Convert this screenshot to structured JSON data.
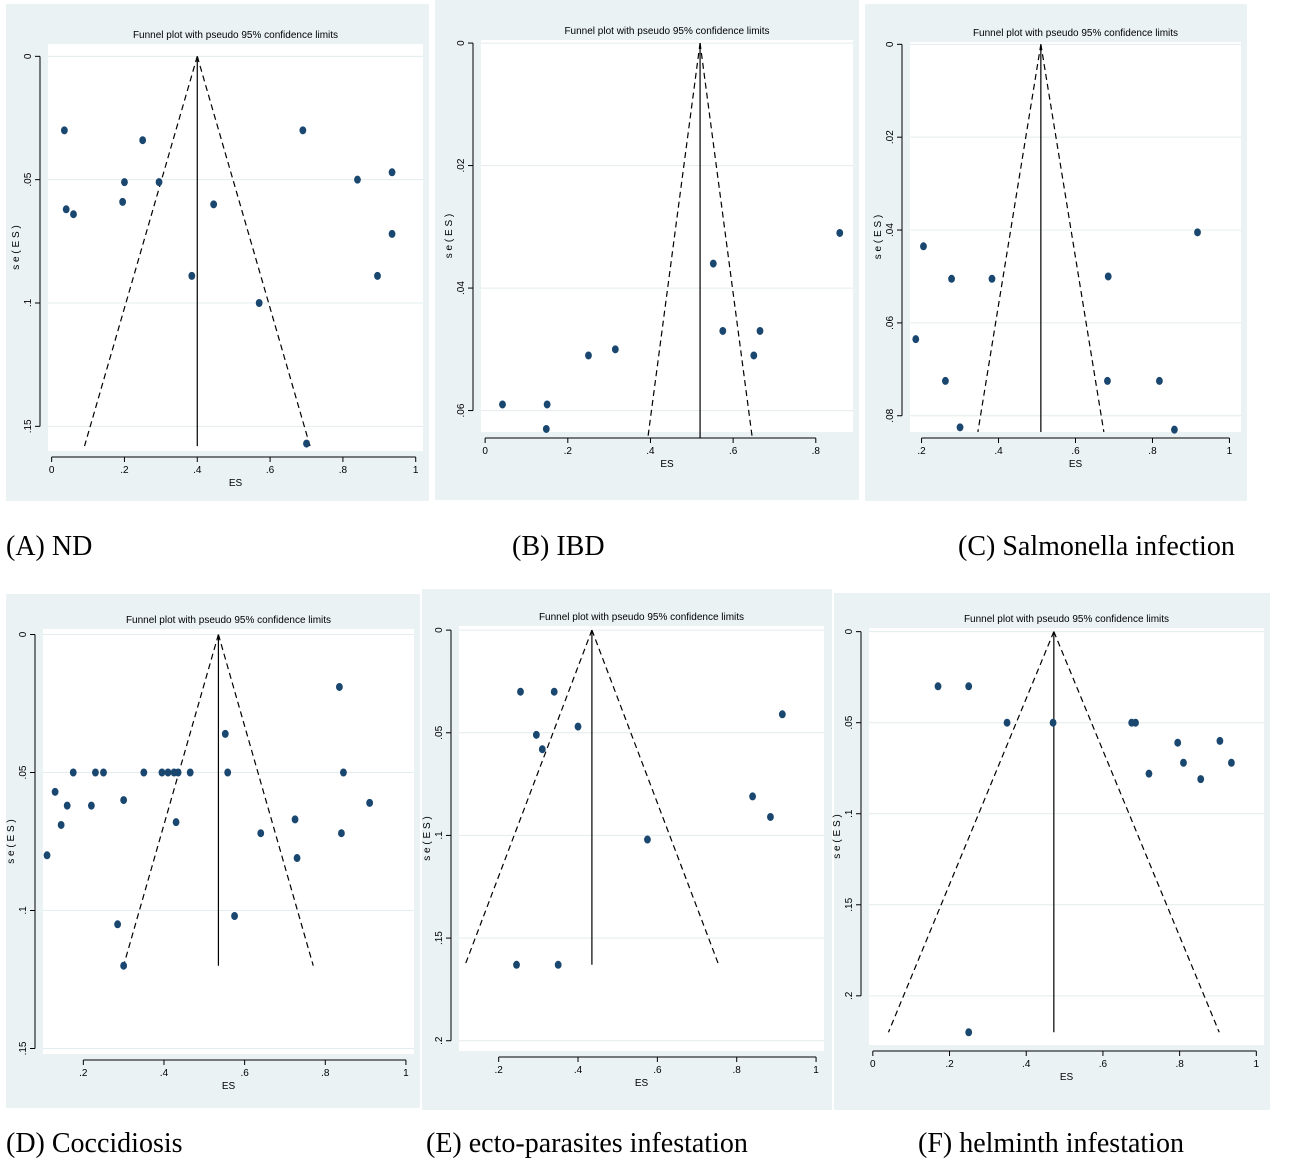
{
  "colors": {
    "panel_bg": "#eaf2f3",
    "plot_bg": "#ffffff",
    "grid": "#e3ecee",
    "marker": "#1a476f",
    "line": "#000000"
  },
  "captions": [
    "(A) ND",
    "(B) IBD",
    "(C) Salmonella infection",
    "(D) Coccidiosis",
    "(E) ecto-parasites infestation",
    "(F) helminth infestation"
  ],
  "chart_data": [
    {
      "type": "scatter",
      "title": "Funnel plot with pseudo 95% confidence limits",
      "xlabel": "ES",
      "ylabel": "s e ( E S )",
      "xlim": [
        -0.01,
        1.02
      ],
      "ylim": [
        0.16,
        -0.005
      ],
      "y_reversed": true,
      "grid": true,
      "xticks": [
        0,
        0.2,
        0.4,
        0.6,
        0.8,
        1
      ],
      "xtick_labels": [
        "0",
        ".2",
        ".4",
        ".6",
        ".8",
        "1"
      ],
      "yticks": [
        0,
        0.05,
        0.1,
        0.15
      ],
      "ytick_labels": [
        "0",
        ".05",
        ".1",
        ".15"
      ],
      "pooled_es": 0.4,
      "funnel_max_se": 0.158,
      "points": [
        {
          "x": 0.035,
          "y": 0.03
        },
        {
          "x": 0.04,
          "y": 0.062
        },
        {
          "x": 0.06,
          "y": 0.064
        },
        {
          "x": 0.195,
          "y": 0.059
        },
        {
          "x": 0.2,
          "y": 0.051
        },
        {
          "x": 0.25,
          "y": 0.034
        },
        {
          "x": 0.295,
          "y": 0.051
        },
        {
          "x": 0.385,
          "y": 0.089
        },
        {
          "x": 0.445,
          "y": 0.06
        },
        {
          "x": 0.57,
          "y": 0.1
        },
        {
          "x": 0.69,
          "y": 0.03
        },
        {
          "x": 0.7,
          "y": 0.157
        },
        {
          "x": 0.84,
          "y": 0.05
        },
        {
          "x": 0.895,
          "y": 0.089
        },
        {
          "x": 0.935,
          "y": 0.047
        },
        {
          "x": 0.935,
          "y": 0.072
        }
      ]
    },
    {
      "type": "scatter",
      "title": "Funnel plot with pseudo 95% confidence limits",
      "xlabel": "ES",
      "ylabel": "s e ( E S )",
      "xlim": [
        -0.01,
        0.89
      ],
      "ylim": [
        0.0635,
        -0.0005
      ],
      "y_reversed": true,
      "grid": true,
      "xticks": [
        0,
        0.2,
        0.4,
        0.6,
        0.8
      ],
      "xtick_labels": [
        "0",
        ".2",
        ".4",
        ".6",
        ".8"
      ],
      "yticks": [
        0,
        0.02,
        0.04,
        0.06
      ],
      "ytick_labels": [
        "0",
        ".02",
        ".04",
        ".06"
      ],
      "pooled_es": 0.52,
      "funnel_max_se": 0.0645,
      "points": [
        {
          "x": 0.042,
          "y": 0.059
        },
        {
          "x": 0.148,
          "y": 0.063
        },
        {
          "x": 0.15,
          "y": 0.059
        },
        {
          "x": 0.25,
          "y": 0.051
        },
        {
          "x": 0.315,
          "y": 0.05
        },
        {
          "x": 0.552,
          "y": 0.036
        },
        {
          "x": 0.575,
          "y": 0.047
        },
        {
          "x": 0.65,
          "y": 0.051
        },
        {
          "x": 0.665,
          "y": 0.047
        },
        {
          "x": 0.858,
          "y": 0.031
        }
      ]
    },
    {
      "type": "scatter",
      "title": "Funnel plot with pseudo 95% confidence limits",
      "xlabel": "ES",
      "ylabel": "s e ( E S )",
      "xlim": [
        0.17,
        1.03
      ],
      "ylim": [
        0.0835,
        -0.0005
      ],
      "y_reversed": true,
      "grid": true,
      "xticks": [
        0.2,
        0.4,
        0.6,
        0.8,
        1
      ],
      "xtick_labels": [
        ".2",
        ".4",
        ".6",
        ".8",
        "1"
      ],
      "yticks": [
        0,
        0.02,
        0.04,
        0.06,
        0.08
      ],
      "ytick_labels": [
        "0",
        ".02",
        ".04",
        ".06",
        ".08"
      ],
      "pooled_es": 0.51,
      "funnel_max_se": 0.0835,
      "points": [
        {
          "x": 0.185,
          "y": 0.0635
        },
        {
          "x": 0.205,
          "y": 0.0435
        },
        {
          "x": 0.262,
          "y": 0.0725
        },
        {
          "x": 0.278,
          "y": 0.0505
        },
        {
          "x": 0.3,
          "y": 0.0825
        },
        {
          "x": 0.383,
          "y": 0.0505
        },
        {
          "x": 0.683,
          "y": 0.0725
        },
        {
          "x": 0.685,
          "y": 0.05
        },
        {
          "x": 0.818,
          "y": 0.0725
        },
        {
          "x": 0.857,
          "y": 0.083
        },
        {
          "x": 0.917,
          "y": 0.0405
        }
      ]
    },
    {
      "type": "scatter",
      "title": "Funnel plot with pseudo 95% confidence limits",
      "xlabel": "ES",
      "ylabel": "s e ( E S )",
      "xlim": [
        0.1,
        1.02
      ],
      "ylim": [
        0.152,
        -0.002
      ],
      "y_reversed": true,
      "grid": true,
      "xticks": [
        0.2,
        0.4,
        0.6,
        0.8,
        1
      ],
      "xtick_labels": [
        ".2",
        ".4",
        ".6",
        ".8",
        "1"
      ],
      "yticks": [
        0,
        0.05,
        0.1,
        0.15
      ],
      "ytick_labels": [
        "0",
        ".05",
        ".1",
        ".15"
      ],
      "pooled_es": 0.535,
      "funnel_max_se": 0.12,
      "points": [
        {
          "x": 0.11,
          "y": 0.08
        },
        {
          "x": 0.13,
          "y": 0.057
        },
        {
          "x": 0.145,
          "y": 0.069
        },
        {
          "x": 0.16,
          "y": 0.062
        },
        {
          "x": 0.175,
          "y": 0.05
        },
        {
          "x": 0.22,
          "y": 0.062
        },
        {
          "x": 0.23,
          "y": 0.05
        },
        {
          "x": 0.25,
          "y": 0.05
        },
        {
          "x": 0.285,
          "y": 0.105
        },
        {
          "x": 0.3,
          "y": 0.06
        },
        {
          "x": 0.3,
          "y": 0.12
        },
        {
          "x": 0.35,
          "y": 0.05
        },
        {
          "x": 0.395,
          "y": 0.05
        },
        {
          "x": 0.41,
          "y": 0.05
        },
        {
          "x": 0.425,
          "y": 0.05
        },
        {
          "x": 0.43,
          "y": 0.068
        },
        {
          "x": 0.435,
          "y": 0.05
        },
        {
          "x": 0.465,
          "y": 0.05
        },
        {
          "x": 0.552,
          "y": 0.036
        },
        {
          "x": 0.558,
          "y": 0.05
        },
        {
          "x": 0.575,
          "y": 0.102
        },
        {
          "x": 0.64,
          "y": 0.072
        },
        {
          "x": 0.725,
          "y": 0.067
        },
        {
          "x": 0.73,
          "y": 0.081
        },
        {
          "x": 0.835,
          "y": 0.019
        },
        {
          "x": 0.84,
          "y": 0.072
        },
        {
          "x": 0.845,
          "y": 0.05
        },
        {
          "x": 0.91,
          "y": 0.061
        }
      ]
    },
    {
      "type": "scatter",
      "title": "Funnel plot with pseudo 95% confidence limits",
      "xlabel": "ES",
      "ylabel": "s e ( E S )",
      "xlim": [
        0.1,
        1.02
      ],
      "ylim": [
        0.205,
        -0.002
      ],
      "y_reversed": true,
      "grid": true,
      "xticks": [
        0.2,
        0.4,
        0.6,
        0.8,
        1
      ],
      "xtick_labels": [
        ".2",
        ".4",
        ".6",
        ".8",
        "1"
      ],
      "yticks": [
        0,
        0.05,
        0.1,
        0.15,
        0.2
      ],
      "ytick_labels": [
        "0",
        ".05",
        ".1",
        ".15",
        ".2"
      ],
      "pooled_es": 0.435,
      "funnel_max_se": 0.163,
      "points": [
        {
          "x": 0.245,
          "y": 0.163
        },
        {
          "x": 0.255,
          "y": 0.03
        },
        {
          "x": 0.295,
          "y": 0.051
        },
        {
          "x": 0.31,
          "y": 0.058
        },
        {
          "x": 0.34,
          "y": 0.03
        },
        {
          "x": 0.35,
          "y": 0.163
        },
        {
          "x": 0.4,
          "y": 0.047
        },
        {
          "x": 0.575,
          "y": 0.102
        },
        {
          "x": 0.84,
          "y": 0.081
        },
        {
          "x": 0.885,
          "y": 0.091
        },
        {
          "x": 0.915,
          "y": 0.041
        }
      ]
    },
    {
      "type": "scatter",
      "title": "Funnel plot with pseudo 95% confidence limits",
      "xlabel": "ES",
      "ylabel": "s e ( E S )",
      "xlim": [
        -0.01,
        1.02
      ],
      "ylim": [
        0.227,
        -0.002
      ],
      "y_reversed": true,
      "grid": true,
      "xticks": [
        0,
        0.2,
        0.4,
        0.6,
        0.8,
        1
      ],
      "xtick_labels": [
        "0",
        ".2",
        ".4",
        ".6",
        ".8",
        "1"
      ],
      "yticks": [
        0,
        0.05,
        0.1,
        0.15,
        0.2
      ],
      "ytick_labels": [
        "0",
        ".05",
        ".1",
        ".15",
        ".2"
      ],
      "pooled_es": 0.472,
      "funnel_max_se": 0.22,
      "points": [
        {
          "x": 0.17,
          "y": 0.03
        },
        {
          "x": 0.25,
          "y": 0.03
        },
        {
          "x": 0.25,
          "y": 0.22
        },
        {
          "x": 0.35,
          "y": 0.05
        },
        {
          "x": 0.47,
          "y": 0.05
        },
        {
          "x": 0.675,
          "y": 0.05
        },
        {
          "x": 0.685,
          "y": 0.05
        },
        {
          "x": 0.72,
          "y": 0.078
        },
        {
          "x": 0.795,
          "y": 0.061
        },
        {
          "x": 0.81,
          "y": 0.072
        },
        {
          "x": 0.855,
          "y": 0.081
        },
        {
          "x": 0.905,
          "y": 0.06
        },
        {
          "x": 0.935,
          "y": 0.072
        }
      ]
    }
  ]
}
